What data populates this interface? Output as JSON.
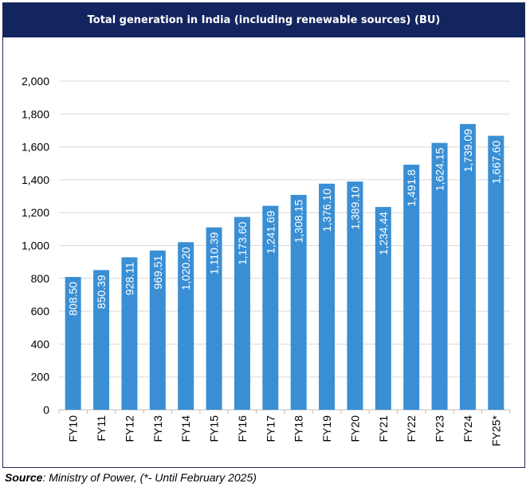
{
  "chart_data": {
    "type": "bar",
    "title": "Total generation in India (including renewable sources) (BU)",
    "categories": [
      "FY10",
      "FY11",
      "FY12",
      "FY13",
      "FY14",
      "FY15",
      "FY16",
      "FY17",
      "FY18",
      "FY19",
      "FY20",
      "FY21",
      "FY22",
      "FY23",
      "FY24",
      "FY25*"
    ],
    "values": [
      808.5,
      850.39,
      928.11,
      969.51,
      1020.2,
      1110.39,
      1173.6,
      1241.69,
      1308.15,
      1376.1,
      1389.1,
      1234.44,
      1491.8,
      1624.15,
      1739.09,
      1667.6
    ],
    "data_labels": [
      "808.50",
      "850.39",
      "928.11",
      "969.51",
      "1,020.20",
      "1,110.39",
      "1,173.60",
      "1,241.69",
      "1,308.15",
      "1,376.10",
      "1,389.10",
      "1,234.44",
      "1,491.8",
      "1,624.15",
      "1,739.09",
      "1,667.60"
    ],
    "ylim": [
      0,
      2000
    ],
    "yticks": [
      0,
      200,
      400,
      600,
      800,
      1000,
      1200,
      1400,
      1600,
      1800,
      2000
    ],
    "ytick_labels": [
      "0",
      "200",
      "400",
      "600",
      "800",
      "1,000",
      "1,200",
      "1,400",
      "1,600",
      "1,800",
      "2,000"
    ],
    "grid": true,
    "bar_color": "#3a8fd4",
    "grid_color": "#d9d9d9",
    "title_bg": "#13255e"
  },
  "source": {
    "label": "Source",
    "text": ": Ministry of Power, (*- Until February 2025)"
  }
}
